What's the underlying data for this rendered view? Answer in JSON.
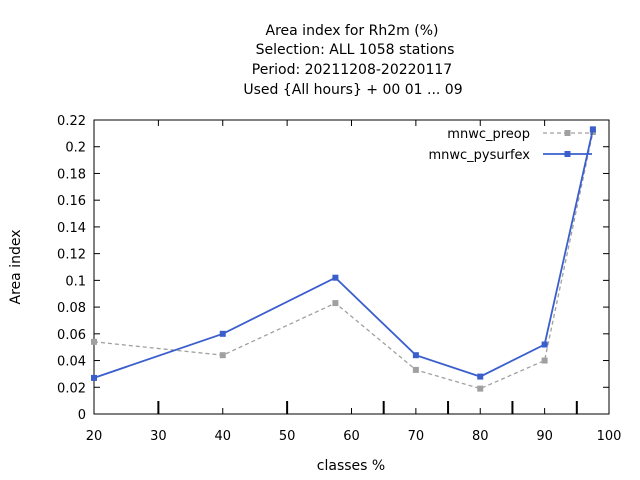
{
  "chart_data": {
    "type": "line",
    "title_lines": [
      "Area index  for Rh2m (%)",
      "Selection: ALL    1058 stations",
      "Period: 20211208-20220117",
      "Used {All hours} + 00 01 ... 09"
    ],
    "xlabel": "classes %",
    "ylabel": "Area index",
    "xlim": [
      20,
      100
    ],
    "ylim": [
      0,
      0.22
    ],
    "x_ticks": [
      20,
      30,
      40,
      50,
      60,
      70,
      80,
      90,
      100
    ],
    "y_ticks": [
      0,
      0.02,
      0.04,
      0.06,
      0.08,
      0.1,
      0.12,
      0.14,
      0.16,
      0.18,
      0.2,
      0.22
    ],
    "y_tick_labels": [
      "0",
      "0.02",
      "0.04",
      "0.06",
      "0.08",
      "0.1",
      "0.12",
      "0.14",
      "0.16",
      "0.18",
      "0.2",
      "0.22"
    ],
    "minor_x_ticks": [
      30,
      50,
      65,
      75,
      85,
      95
    ],
    "legend_position": "top-right",
    "grid": false,
    "series": [
      {
        "name": "mnwc_preop",
        "color": "#a0a0a0",
        "dashed": true,
        "x": [
          20,
          40,
          57.5,
          70,
          80,
          90,
          97.5
        ],
        "y": [
          0.054,
          0.044,
          0.083,
          0.033,
          0.019,
          0.04,
          0.211
        ]
      },
      {
        "name": "mnwc_pysurfex",
        "color": "#3a5fcd",
        "dashed": false,
        "x": [
          20,
          40,
          57.5,
          70,
          80,
          90,
          97.5
        ],
        "y": [
          0.027,
          0.06,
          0.102,
          0.044,
          0.028,
          0.052,
          0.213
        ]
      }
    ]
  }
}
